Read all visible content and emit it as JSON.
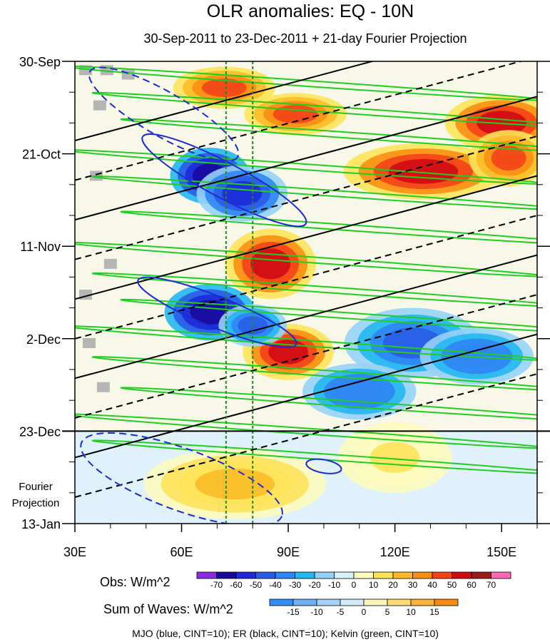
{
  "chart_data": {
    "type": "heatmap",
    "title": "OLR anomalies: EQ - 10N",
    "subtitle": "30-Sep-2011 to 23-Dec-2011 + 21-day Fourier Projection",
    "x_ticks": [
      "30E",
      "60E",
      "90E",
      "120E",
      "150E"
    ],
    "x_tick_values": [
      30,
      60,
      90,
      120,
      150
    ],
    "xlim": [
      30,
      160
    ],
    "y_ticks": [
      "30-Sep",
      "21-Oct",
      "11-Nov",
      "2-Dec",
      "23-Dec",
      "13-Jan"
    ],
    "y_tick_days": [
      0,
      21,
      42,
      63,
      84,
      105
    ],
    "ylim_days": [
      0,
      105
    ],
    "projection_start_day": 84,
    "projection_label": [
      "Fourier",
      "Projection"
    ],
    "reference_lines_lon": [
      72.5,
      80
    ],
    "obs_colorbar": {
      "label": "Obs: W/m^2",
      "levels": [
        "-70",
        "-60",
        "-50",
        "-40",
        "-30",
        "-20",
        "-10",
        "0",
        "10",
        "20",
        "30",
        "40",
        "50",
        "60",
        "70"
      ],
      "colors": [
        "#8a2be2",
        "#1a0a9c",
        "#1e2ad8",
        "#2a5ce8",
        "#2f86f4",
        "#22b8f0",
        "#96d2f7",
        "#d6f2fb",
        "#fdfbbf",
        "#fde35a",
        "#fdbb28",
        "#f98f14",
        "#f3421a",
        "#d10a14",
        "#9c1b1b",
        "#ff69b4"
      ]
    },
    "waves_colorbar": {
      "label": "Sum of Waves: W/m^2",
      "levels": [
        "-15",
        "-10",
        "-5",
        "0",
        "5",
        "10",
        "15"
      ],
      "colors": [
        "#2f8ff5",
        "#6db2f6",
        "#a6d0f8",
        "#d3eafb",
        "#fdf3b8",
        "#fddb72",
        "#fcb33c",
        "#f98a10"
      ]
    },
    "footnote": "MJO (blue, CINT=10); ER (black, CINT=10); Kelvin (green, CINT=10)",
    "series": [
      {
        "name": "MJO",
        "color": "#1f2ad0"
      },
      {
        "name": "ER",
        "color": "#000000"
      },
      {
        "name": "Kelvin",
        "color": "#22cc22"
      }
    ],
    "obs_anomaly_blobs": [
      {
        "lon": 72,
        "day": 6,
        "rlon": 9,
        "rday": 3,
        "value": 45
      },
      {
        "lon": 92,
        "day": 12,
        "rlon": 9,
        "rday": 3,
        "value": 40
      },
      {
        "lon": 150,
        "day": 14,
        "rlon": 10,
        "rday": 4,
        "value": 50
      },
      {
        "lon": 128,
        "day": 25,
        "rlon": 14,
        "rday": 4,
        "value": 50
      },
      {
        "lon": 152,
        "day": 22,
        "rlon": 7,
        "rday": 4,
        "value": 45
      },
      {
        "lon": 85,
        "day": 46,
        "rlon": 8,
        "rday": 5,
        "value": 55
      },
      {
        "lon": 90,
        "day": 66,
        "rlon": 8,
        "rday": 4,
        "value": 50
      },
      {
        "lon": 68,
        "day": 26,
        "rlon": 7,
        "rday": 4,
        "value": -70
      },
      {
        "lon": 77,
        "day": 30,
        "rlon": 8,
        "rday": 4,
        "value": -55
      },
      {
        "lon": 68,
        "day": 57,
        "rlon": 8,
        "rday": 4,
        "value": -70
      },
      {
        "lon": 80,
        "day": 60,
        "rlon": 6,
        "rday": 3,
        "value": -45
      },
      {
        "lon": 125,
        "day": 64,
        "rlon": 12,
        "rday": 5,
        "value": -45
      },
      {
        "lon": 143,
        "day": 67,
        "rlon": 10,
        "rday": 4,
        "value": -40
      },
      {
        "lon": 110,
        "day": 75,
        "rlon": 10,
        "rday": 4,
        "value": -40
      },
      {
        "lon": 75,
        "day": 96,
        "rlon": 16,
        "rday": 5,
        "value": 20
      },
      {
        "lon": 120,
        "day": 90,
        "rlon": 10,
        "rday": 5,
        "value": 10
      }
    ],
    "missing_data_cells": [
      {
        "lon": 33,
        "day": 2
      },
      {
        "lon": 39,
        "day": 2
      },
      {
        "lon": 45,
        "day": 3
      },
      {
        "lon": 37,
        "day": 10
      },
      {
        "lon": 36,
        "day": 26
      },
      {
        "lon": 40,
        "day": 46
      },
      {
        "lon": 33,
        "day": 53
      },
      {
        "lon": 34,
        "day": 64
      },
      {
        "lon": 38,
        "day": 74
      }
    ]
  }
}
